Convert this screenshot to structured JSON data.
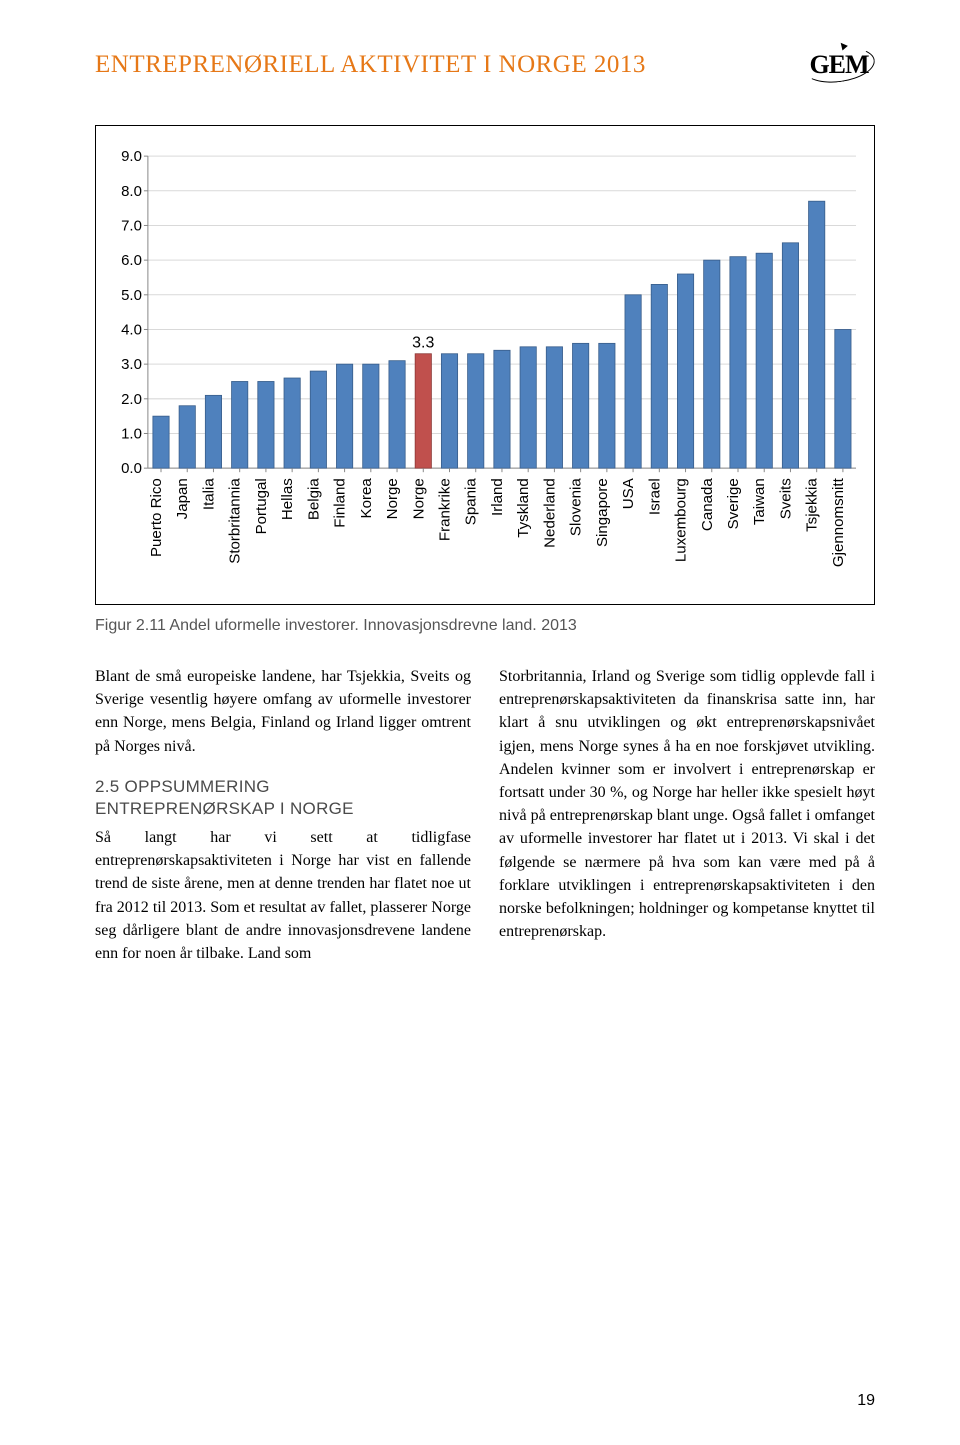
{
  "header": {
    "title": "ENTREPRENØRIELL AKTIVITET I NORGE 2013",
    "logo_text": "GEM"
  },
  "chart": {
    "type": "bar",
    "ylim": [
      0.0,
      9.0
    ],
    "ytick_step": 1.0,
    "yticks": [
      "0.0",
      "1.0",
      "2.0",
      "3.0",
      "4.0",
      "5.0",
      "6.0",
      "7.0",
      "8.0",
      "9.0"
    ],
    "tick_fontsize": 15,
    "axis_fontsize": 15,
    "background_color": "#ffffff",
    "grid_color": "#d9d9d9",
    "axis_color": "#888888",
    "bar_color_default": "#4f81bd",
    "bar_color_highlight": "#c0504d",
    "bar_border_color": "#385d8a",
    "bar_border_highlight": "#8c3836",
    "bar_width": 0.62,
    "highlight_index": 10,
    "highlight_label": "3.3",
    "highlight_label_fontsize": 16,
    "highlight_label_color": "#000000",
    "categories": [
      "Puerto Rico",
      "Japan",
      "Italia",
      "Storbritannia",
      "Portugal",
      "Hellas",
      "Belgia",
      "Finland",
      "Korea",
      "Norge",
      "Norge",
      "Frankrike",
      "Spania",
      "Irland",
      "Tyskland",
      "Nederland",
      "Slovenia",
      "Singapore",
      "USA",
      "Israel",
      "Luxembourg",
      "Canada",
      "Sverige",
      "Taiwan",
      "Sveits",
      "Tsjekkia",
      "Gjennomsnitt"
    ],
    "values": [
      1.5,
      1.8,
      2.1,
      2.5,
      2.5,
      2.6,
      2.8,
      3.0,
      3.0,
      3.1,
      3.3,
      3.3,
      3.3,
      3.4,
      3.5,
      3.5,
      3.6,
      3.6,
      5.0,
      5.3,
      5.6,
      6.0,
      6.1,
      6.2,
      6.5,
      7.7,
      4.0
    ],
    "category_fontsize": 15,
    "category_rotation": -90
  },
  "figure_caption": "Figur 2.11 Andel uformelle investorer. Innovasjonsdrevne land. 2013",
  "body": {
    "left_p1": "Blant de små europeiske landene, har Tsjekkia, Sveits og Sverige vesentlig høyere omfang av uformelle investorer enn Norge, mens Belgia, Finland og Irland ligger omtrent på Norges nivå.",
    "section_heading_1": "2.5 OPPSUMMERING",
    "section_heading_2": "ENTREPRENØRSKAP I NORGE",
    "left_p2": "Så langt har vi sett at tidligfase entreprenørskapsaktiviteten i Norge har vist en fallende trend de siste årene, men at denne trenden har flatet noe ut fra 2012 til 2013. Som et resultat av fallet, plasserer Norge seg dårligere blant de andre innovasjonsdrevene landene enn for noen år tilbake. Land som",
    "right_p1": "Storbritannia, Irland og Sverige som tidlig opplevde fall i entreprenørskapsaktiviteten da finanskrisa satte inn, har klart å snu utviklingen og økt entreprenørskapsnivået igjen, mens Norge synes å ha en noe forskjøvet utvikling. Andelen kvinner som er involvert i entreprenørskap er fortsatt under 30 %, og Norge har heller ikke spesielt høyt nivå på entreprenørskap blant unge. Også fallet i omfanget av uformelle investorer har flatet ut i 2013. Vi skal i det følgende se nærmere på hva som kan være med på å forklare utviklingen i entreprenørskapsaktiviteten i den norske befolkningen; holdninger og kompetanse knyttet til entreprenørskap."
  },
  "page_number": "19"
}
